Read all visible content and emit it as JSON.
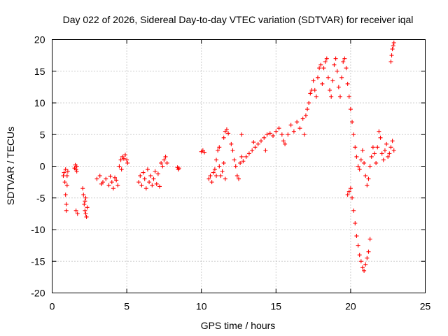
{
  "chart_data": {
    "type": "scatter",
    "title": "Day 022 of 2026, Sidereal Day-to-day VTEC variation (SDTVAR) for receiver iqal",
    "xlabel": "GPS time / hours",
    "ylabel": "SDTVAR / TECUs",
    "xlim": [
      0,
      25
    ],
    "ylim": [
      -20,
      20
    ],
    "xticks": [
      "0",
      "5",
      "10",
      "15",
      "20",
      "25"
    ],
    "yticks": [
      "-20",
      "-15",
      "-10",
      "-5",
      "0",
      "5",
      "10",
      "15",
      "20"
    ],
    "grid": true,
    "marker": "+",
    "color": "#ff0000",
    "series": [
      {
        "name": "SDTVAR",
        "points": [
          [
            0.75,
            -1.5
          ],
          [
            0.8,
            -1.0
          ],
          [
            0.85,
            -2.5
          ],
          [
            0.9,
            -0.5
          ],
          [
            0.9,
            -4.5
          ],
          [
            0.95,
            -6.0
          ],
          [
            0.95,
            -7.0
          ],
          [
            1.0,
            -1.5
          ],
          [
            1.0,
            -3.0
          ],
          [
            1.05,
            -0.8
          ],
          [
            1.5,
            -0.3
          ],
          [
            1.55,
            0.2
          ],
          [
            1.6,
            -0.5
          ],
          [
            1.65,
            0.0
          ],
          [
            1.6,
            -7.0
          ],
          [
            1.7,
            -7.5
          ],
          [
            1.65,
            -0.8
          ],
          [
            2.05,
            -3.5
          ],
          [
            2.1,
            -4.5
          ],
          [
            2.15,
            -6.0
          ],
          [
            2.2,
            -7.0
          ],
          [
            2.25,
            -7.5
          ],
          [
            2.3,
            -8.0
          ],
          [
            2.35,
            -6.5
          ],
          [
            2.2,
            -5.5
          ],
          [
            2.25,
            -5.0
          ],
          [
            3.0,
            -2.0
          ],
          [
            3.2,
            -1.5
          ],
          [
            3.4,
            -2.5
          ],
          [
            3.6,
            -2.0
          ],
          [
            3.8,
            -3.0
          ],
          [
            4.0,
            -2.5
          ],
          [
            4.1,
            -3.5
          ],
          [
            4.2,
            -1.8
          ],
          [
            4.3,
            -2.2
          ],
          [
            4.4,
            -3.0
          ],
          [
            3.3,
            -2.8
          ],
          [
            3.9,
            -1.6
          ],
          [
            4.5,
            0.0
          ],
          [
            4.6,
            1.0
          ],
          [
            4.7,
            1.5
          ],
          [
            4.8,
            1.2
          ],
          [
            4.9,
            1.8
          ],
          [
            5.0,
            1.0
          ],
          [
            5.05,
            0.5
          ],
          [
            4.65,
            -0.5
          ],
          [
            5.8,
            -2.5
          ],
          [
            5.9,
            -1.5
          ],
          [
            6.0,
            -3.0
          ],
          [
            6.1,
            -1.0
          ],
          [
            6.2,
            -2.0
          ],
          [
            6.3,
            -3.5
          ],
          [
            6.4,
            -0.5
          ],
          [
            6.5,
            -2.5
          ],
          [
            6.6,
            -1.5
          ],
          [
            6.7,
            -3.0
          ],
          [
            6.8,
            -2.0
          ],
          [
            6.9,
            -0.8
          ],
          [
            7.0,
            -2.8
          ],
          [
            7.1,
            -1.2
          ],
          [
            7.2,
            -3.2
          ],
          [
            7.3,
            0.5
          ],
          [
            7.4,
            0.0
          ],
          [
            7.5,
            1.0
          ],
          [
            7.6,
            1.5
          ],
          [
            7.7,
            0.5
          ],
          [
            8.4,
            -0.2
          ],
          [
            8.45,
            -0.5
          ],
          [
            8.5,
            -0.3
          ],
          [
            10.0,
            2.3
          ],
          [
            10.1,
            2.5
          ],
          [
            10.2,
            2.2
          ],
          [
            10.5,
            -2.0
          ],
          [
            10.6,
            -1.5
          ],
          [
            10.7,
            -2.5
          ],
          [
            10.8,
            -1.0
          ],
          [
            10.9,
            -0.5
          ],
          [
            11.0,
            -1.5
          ],
          [
            11.0,
            1.0
          ],
          [
            11.1,
            2.5
          ],
          [
            11.2,
            0.0
          ],
          [
            11.3,
            -1.5
          ],
          [
            11.4,
            -0.8
          ],
          [
            11.5,
            0.5
          ],
          [
            11.6,
            -2.0
          ],
          [
            11.5,
            4.5
          ],
          [
            11.6,
            5.5
          ],
          [
            11.7,
            5.8
          ],
          [
            11.8,
            5.2
          ],
          [
            11.2,
            3.0
          ],
          [
            12.0,
            3.5
          ],
          [
            12.1,
            2.5
          ],
          [
            12.2,
            1.0
          ],
          [
            12.3,
            0.0
          ],
          [
            12.4,
            -1.5
          ],
          [
            12.5,
            -2.0
          ],
          [
            12.6,
            0.5
          ],
          [
            12.7,
            1.5
          ],
          [
            12.8,
            0.8
          ],
          [
            12.7,
            5.0
          ],
          [
            13.0,
            1.5
          ],
          [
            13.2,
            2.0
          ],
          [
            13.4,
            2.5
          ],
          [
            13.6,
            3.0
          ],
          [
            13.8,
            3.5
          ],
          [
            14.0,
            4.0
          ],
          [
            14.2,
            4.5
          ],
          [
            14.4,
            5.0
          ],
          [
            14.6,
            5.2
          ],
          [
            14.8,
            4.8
          ],
          [
            13.5,
            3.8
          ],
          [
            14.3,
            2.5
          ],
          [
            15.0,
            5.5
          ],
          [
            15.2,
            6.0
          ],
          [
            15.4,
            5.0
          ],
          [
            15.5,
            4.0
          ],
          [
            15.6,
            3.5
          ],
          [
            15.8,
            5.0
          ],
          [
            16.0,
            6.5
          ],
          [
            16.2,
            5.5
          ],
          [
            16.4,
            7.0
          ],
          [
            16.6,
            6.0
          ],
          [
            16.8,
            7.5
          ],
          [
            16.9,
            5.0
          ],
          [
            17.0,
            8.0
          ],
          [
            17.1,
            9.0
          ],
          [
            17.2,
            10.0
          ],
          [
            17.3,
            11.5
          ],
          [
            17.4,
            12.0
          ],
          [
            17.5,
            13.5
          ],
          [
            17.6,
            12.0
          ],
          [
            17.7,
            11.0
          ],
          [
            17.8,
            14.0
          ],
          [
            17.9,
            15.5
          ],
          [
            18.0,
            16.0
          ],
          [
            18.1,
            13.0
          ],
          [
            18.2,
            15.5
          ],
          [
            18.3,
            16.5
          ],
          [
            18.4,
            17.0
          ],
          [
            18.5,
            14.0
          ],
          [
            18.6,
            12.0
          ],
          [
            18.7,
            11.0
          ],
          [
            18.8,
            13.5
          ],
          [
            18.9,
            16.0
          ],
          [
            19.0,
            17.0
          ],
          [
            19.1,
            15.0
          ],
          [
            19.2,
            12.5
          ],
          [
            19.3,
            11.0
          ],
          [
            19.4,
            14.0
          ],
          [
            19.5,
            16.5
          ],
          [
            19.6,
            17.0
          ],
          [
            19.7,
            15.5
          ],
          [
            19.8,
            13.0
          ],
          [
            19.9,
            11.0
          ],
          [
            20.0,
            9.0
          ],
          [
            20.1,
            7.0
          ],
          [
            20.2,
            5.0
          ],
          [
            20.3,
            3.0
          ],
          [
            20.4,
            1.5
          ],
          [
            20.5,
            0.0
          ],
          [
            19.8,
            -4.5
          ],
          [
            19.9,
            -4.0
          ],
          [
            20.0,
            -3.5
          ],
          [
            20.1,
            -5.0
          ],
          [
            20.2,
            -7.0
          ],
          [
            20.3,
            -9.0
          ],
          [
            20.4,
            -11.0
          ],
          [
            20.5,
            -12.5
          ],
          [
            20.6,
            -14.0
          ],
          [
            20.7,
            -15.0
          ],
          [
            20.8,
            -16.0
          ],
          [
            20.9,
            -16.5
          ],
          [
            21.0,
            -15.5
          ],
          [
            21.1,
            -14.5
          ],
          [
            21.2,
            -13.5
          ],
          [
            21.3,
            -11.5
          ],
          [
            20.6,
            -0.5
          ],
          [
            20.7,
            1.0
          ],
          [
            20.8,
            2.5
          ],
          [
            20.9,
            0.5
          ],
          [
            21.0,
            -1.5
          ],
          [
            21.1,
            -3.0
          ],
          [
            21.2,
            -2.0
          ],
          [
            21.3,
            0.0
          ],
          [
            21.4,
            1.5
          ],
          [
            21.5,
            3.0
          ],
          [
            21.6,
            2.0
          ],
          [
            21.7,
            0.5
          ],
          [
            21.8,
            3.0
          ],
          [
            21.9,
            5.5
          ],
          [
            22.0,
            4.5
          ],
          [
            22.1,
            2.0
          ],
          [
            22.2,
            1.0
          ],
          [
            22.3,
            2.5
          ],
          [
            22.4,
            3.5
          ],
          [
            22.5,
            1.5
          ],
          [
            22.6,
            2.0
          ],
          [
            22.7,
            3.0
          ],
          [
            22.8,
            4.0
          ],
          [
            22.9,
            2.5
          ],
          [
            22.7,
            16.5
          ],
          [
            22.75,
            17.5
          ],
          [
            22.8,
            18.5
          ],
          [
            22.85,
            19.0
          ],
          [
            22.9,
            19.5
          ]
        ]
      }
    ]
  }
}
